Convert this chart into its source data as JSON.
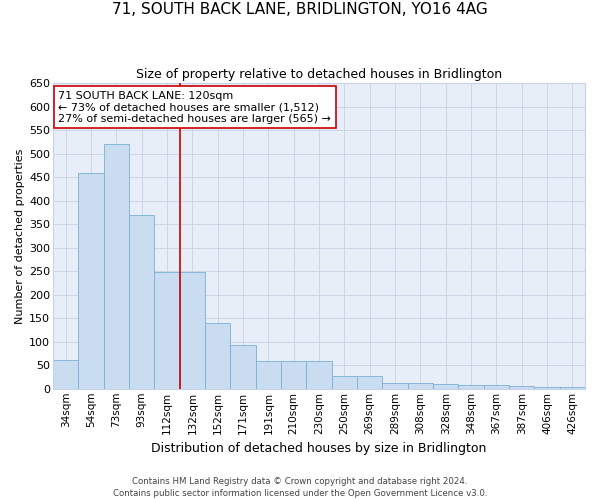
{
  "title": "71, SOUTH BACK LANE, BRIDLINGTON, YO16 4AG",
  "subtitle": "Size of property relative to detached houses in Bridlington",
  "xlabel": "Distribution of detached houses by size in Bridlington",
  "ylabel": "Number of detached properties",
  "categories": [
    "34sqm",
    "54sqm",
    "73sqm",
    "93sqm",
    "112sqm",
    "132sqm",
    "152sqm",
    "171sqm",
    "191sqm",
    "210sqm",
    "230sqm",
    "250sqm",
    "269sqm",
    "289sqm",
    "308sqm",
    "328sqm",
    "348sqm",
    "367sqm",
    "387sqm",
    "406sqm",
    "426sqm"
  ],
  "values": [
    62,
    458,
    520,
    370,
    248,
    248,
    140,
    93,
    60,
    60,
    58,
    27,
    27,
    13,
    13,
    10,
    7,
    7,
    5,
    3,
    3
  ],
  "bar_color": "#c9dcf0",
  "bar_edge_color": "#7ab0d8",
  "vline_color": "#cc0000",
  "vline_pos": 4.5,
  "annotation_line1": "71 SOUTH BACK LANE: 120sqm",
  "annotation_line2": "← 73% of detached houses are smaller (1,512)",
  "annotation_line3": "27% of semi-detached houses are larger (565) →",
  "annotation_box_color": "#ffffff",
  "annotation_box_edge": "#cc0000",
  "ylim": [
    0,
    650
  ],
  "yticks": [
    0,
    50,
    100,
    150,
    200,
    250,
    300,
    350,
    400,
    450,
    500,
    550,
    600,
    650
  ],
  "bg_color": "#e8eef8",
  "grid_color": "#c8d2e4",
  "title_fontsize": 11,
  "subtitle_fontsize": 9,
  "ylabel_fontsize": 8,
  "xlabel_fontsize": 9,
  "tick_fontsize": 7.5,
  "footer_line1": "Contains HM Land Registry data © Crown copyright and database right 2024.",
  "footer_line2": "Contains public sector information licensed under the Open Government Licence v3.0."
}
